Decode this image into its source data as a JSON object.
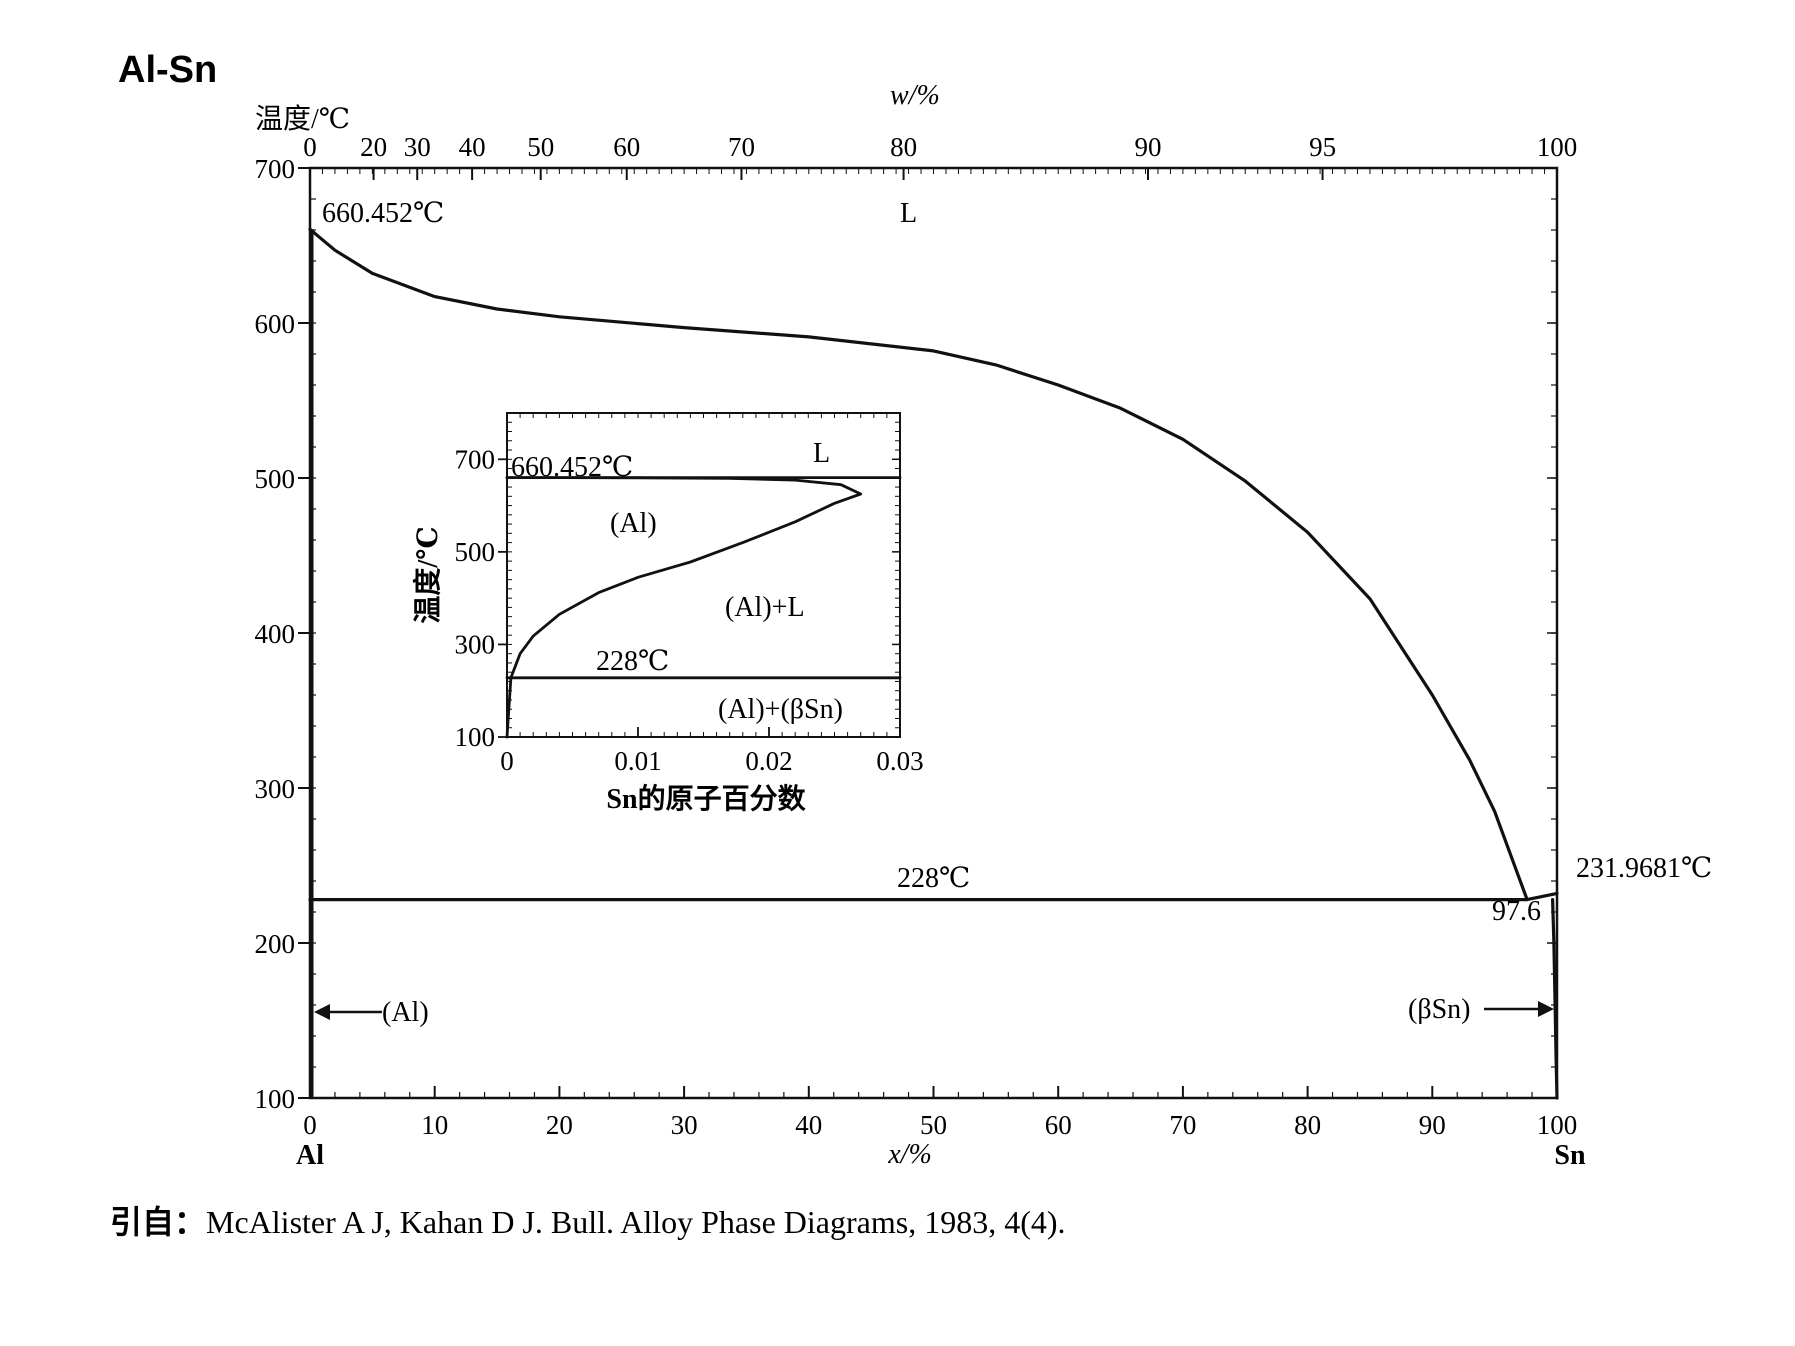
{
  "title": "Al-Sn",
  "main_axes": {
    "y_unit_label": "温度/℃",
    "y_ticks": [
      "700",
      "600",
      "500",
      "400",
      "300",
      "200",
      "100"
    ],
    "y_range": [
      100,
      700
    ],
    "x_bottom_ticks": [
      "0",
      "10",
      "20",
      "30",
      "40",
      "50",
      "60",
      "70",
      "80",
      "90",
      "100"
    ],
    "x_bottom_label": "x/%",
    "x_bottom_left_element": "Al",
    "x_bottom_right_element": "Sn",
    "x_top_label": "w/%",
    "x_top_ticks": [
      {
        "label": "0",
        "x_at": 0.0
      },
      {
        "label": "20",
        "x_at": 5.1
      },
      {
        "label": "30",
        "x_at": 8.6
      },
      {
        "label": "40",
        "x_at": 13.0
      },
      {
        "label": "50",
        "x_at": 18.5
      },
      {
        "label": "60",
        "x_at": 25.4
      },
      {
        "label": "70",
        "x_at": 34.6
      },
      {
        "label": "80",
        "x_at": 47.6
      },
      {
        "label": "90",
        "x_at": 67.2
      },
      {
        "label": "95",
        "x_at": 81.2
      },
      {
        "label": "100",
        "x_at": 100.0
      }
    ]
  },
  "main_labels": {
    "al_melting": "660.452℃",
    "liquid": "L",
    "eutectic_temp": "228℃",
    "eutectic_comp": "97.6",
    "sn_melting": "231.9681℃",
    "al_phase": "(Al)",
    "beta_sn_phase": "(βSn)"
  },
  "inset": {
    "y_label": "温度/℃",
    "y_ticks": [
      "700",
      "500",
      "300",
      "100"
    ],
    "y_range": [
      100,
      800
    ],
    "x_label": "Sn的原子百分数",
    "x_ticks": [
      "0",
      "0.01",
      "0.02",
      "0.03"
    ],
    "x_range": [
      0,
      0.03
    ],
    "labels": {
      "al_melting": "660.452℃",
      "liquid": "L",
      "al_phase": "(Al)",
      "two_phase": "(Al)+L",
      "eutectic": "228℃",
      "low_phase": "(Al)+(βSn)"
    }
  },
  "chart_data": [
    {
      "type": "line",
      "title": "Al-Sn",
      "xlabel": "x/%",
      "ylabel": "温度/℃",
      "xlim": [
        0,
        100
      ],
      "ylim": [
        100,
        700
      ],
      "series": [
        {
          "x": [
            0,
            2,
            5,
            10,
            15,
            20,
            30,
            40,
            50,
            55,
            60,
            65,
            70,
            75,
            80,
            85,
            90,
            93,
            95,
            97.6
          ],
          "y": [
            660.452,
            647,
            632,
            617,
            609,
            604,
            597,
            591,
            582,
            573,
            560,
            545,
            525,
            498,
            465,
            422,
            360,
            318,
            285,
            228
          ]
        },
        {
          "x": [
            0,
            97.6,
            100
          ],
          "y": [
            228,
            228,
            231.9681
          ]
        },
        {
          "x": [
            99.65,
            99.75,
            99.85,
            99.93,
            100
          ],
          "y": [
            228,
            200,
            160,
            125,
            100
          ]
        }
      ]
    },
    {
      "type": "line",
      "xlabel": "Sn的原子百分数",
      "ylabel": "温度/℃",
      "xlim": [
        0,
        0.03
      ],
      "ylim": [
        100,
        800
      ],
      "series": [
        {
          "x": [
            0,
            0.0003,
            0.001,
            0.002,
            0.004,
            0.007,
            0.01,
            0.014,
            0.018,
            0.022,
            0.025,
            0.027,
            0.0255,
            0.022,
            0.017,
            0.01,
            0.004,
            0
          ],
          "y": [
            100,
            228,
            280,
            318,
            365,
            412,
            445,
            478,
            520,
            565,
            605,
            625,
            645,
            655,
            659,
            660,
            660.452,
            660.452
          ]
        },
        {
          "x": [
            0,
            0.03
          ],
          "y": [
            660.452,
            660.452
          ]
        },
        {
          "x": [
            0,
            0.03
          ],
          "y": [
            228,
            228
          ]
        }
      ]
    }
  ],
  "citation": {
    "prefix": "引自：",
    "text": "McAlister A J, Kahan D J. Bull. Alloy Phase Diagrams, 1983, 4(4)."
  }
}
